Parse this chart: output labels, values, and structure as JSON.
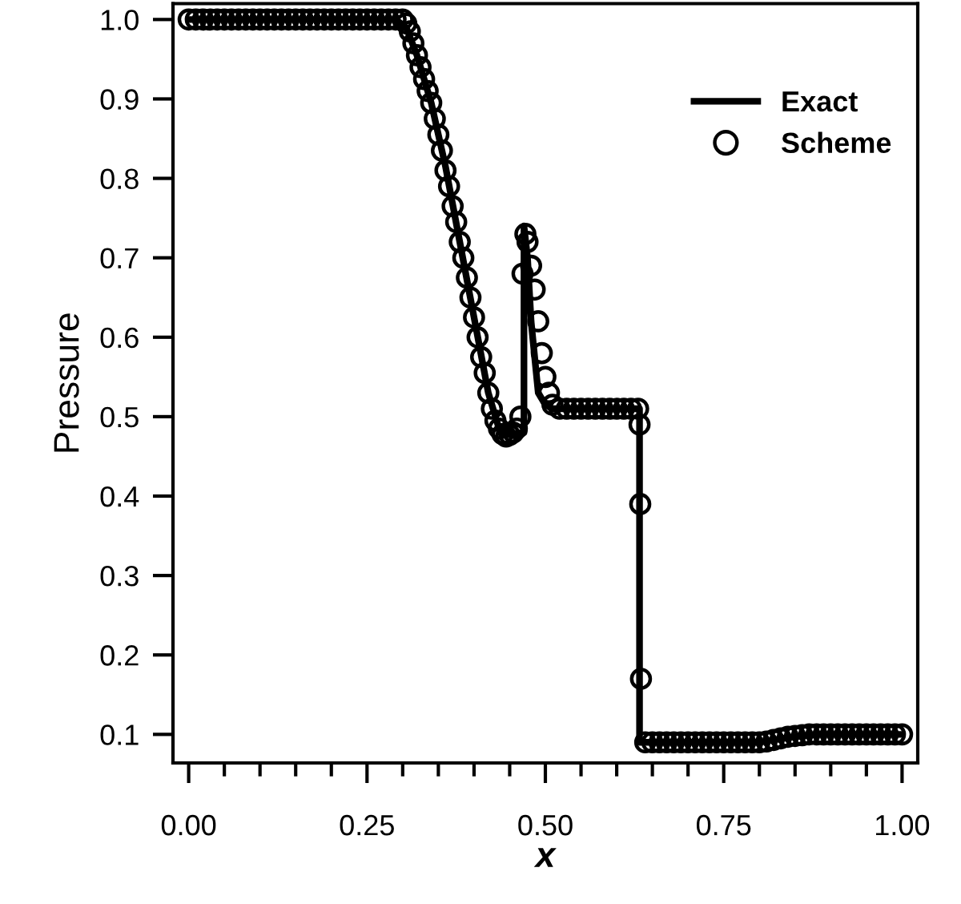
{
  "chart_data": {
    "type": "line",
    "xlabel": "x",
    "ylabel": "Pressure",
    "xlim": [
      -0.022,
      1.022
    ],
    "ylim": [
      0.064,
      1.02
    ],
    "xticks": [
      {
        "value": 0,
        "label": "0.00"
      },
      {
        "value": 0.05,
        "label": null
      },
      {
        "value": 0.1,
        "label": null
      },
      {
        "value": 0.15,
        "label": null
      },
      {
        "value": 0.2,
        "label": null
      },
      {
        "value": 0.25,
        "label": "0.25"
      },
      {
        "value": 0.3,
        "label": null
      },
      {
        "value": 0.35,
        "label": null
      },
      {
        "value": 0.4,
        "label": null
      },
      {
        "value": 0.45,
        "label": null
      },
      {
        "value": 0.5,
        "label": "0.50"
      },
      {
        "value": 0.55,
        "label": null
      },
      {
        "value": 0.6,
        "label": null
      },
      {
        "value": 0.65,
        "label": null
      },
      {
        "value": 0.7,
        "label": null
      },
      {
        "value": 0.75,
        "label": "0.75"
      },
      {
        "value": 0.8,
        "label": null
      },
      {
        "value": 0.85,
        "label": null
      },
      {
        "value": 0.9,
        "label": null
      },
      {
        "value": 0.95,
        "label": null
      },
      {
        "value": 1,
        "label": "1.00"
      }
    ],
    "yticks": [
      0.1,
      0.2,
      0.3,
      0.4,
      0.5,
      0.6,
      0.7,
      0.8,
      0.9,
      {
        "value": 1,
        "label": "1.0"
      }
    ],
    "grid": false,
    "legend": "top right",
    "series": [
      {
        "name": "Exact",
        "color": "#000000",
        "marker": "none",
        "line_style": "solid",
        "x": [
          0,
          0.29,
          0.305,
          0.32,
          0.34,
          0.36,
          0.38,
          0.4,
          0.42,
          0.435,
          0.445,
          0.47,
          0.47,
          0.475,
          0.48,
          0.49,
          0.5,
          0.51,
          0.632,
          0.632,
          0.8,
          0.84,
          0.88,
          1.0
        ],
        "values": [
          1.0,
          1.0,
          0.99,
          0.955,
          0.895,
          0.815,
          0.72,
          0.625,
          0.53,
          0.485,
          0.477,
          0.48,
          0.74,
          0.7,
          0.62,
          0.53,
          0.515,
          0.51,
          0.51,
          0.09,
          0.09,
          0.096,
          0.1,
          0.1
        ]
      },
      {
        "name": "Scheme",
        "type": "scatter",
        "color": "#000000",
        "marker": "circle",
        "x": [
          0,
          0.01,
          0.02,
          0.03,
          0.04,
          0.05,
          0.06,
          0.07,
          0.08,
          0.09,
          0.1,
          0.11,
          0.12,
          0.13,
          0.14,
          0.15,
          0.16,
          0.17,
          0.18,
          0.19,
          0.2,
          0.21,
          0.22,
          0.23,
          0.24,
          0.25,
          0.26,
          0.27,
          0.28,
          0.29,
          0.3,
          0.305,
          0.31,
          0.315,
          0.32,
          0.325,
          0.33,
          0.335,
          0.34,
          0.345,
          0.35,
          0.355,
          0.36,
          0.365,
          0.37,
          0.375,
          0.38,
          0.385,
          0.39,
          0.395,
          0.4,
          0.405,
          0.41,
          0.415,
          0.42,
          0.425,
          0.43,
          0.435,
          0.44,
          0.445,
          0.45,
          0.455,
          0.46,
          0.465,
          0.468,
          0.472,
          0.475,
          0.48,
          0.485,
          0.49,
          0.495,
          0.5,
          0.505,
          0.51,
          0.52,
          0.53,
          0.54,
          0.55,
          0.56,
          0.57,
          0.58,
          0.59,
          0.6,
          0.61,
          0.62,
          0.63,
          0.632,
          0.633,
          0.634,
          0.64,
          0.65,
          0.66,
          0.67,
          0.68,
          0.69,
          0.7,
          0.71,
          0.72,
          0.73,
          0.74,
          0.75,
          0.76,
          0.77,
          0.78,
          0.79,
          0.8,
          0.81,
          0.82,
          0.83,
          0.84,
          0.85,
          0.86,
          0.87,
          0.88,
          0.89,
          0.9,
          0.91,
          0.92,
          0.93,
          0.94,
          0.95,
          0.96,
          0.97,
          0.98,
          0.99,
          1.0
        ],
        "values": [
          1.0,
          1.0,
          1.0,
          1.0,
          1.0,
          1.0,
          1.0,
          1.0,
          1.0,
          1.0,
          1.0,
          1.0,
          1.0,
          1.0,
          1.0,
          1.0,
          1.0,
          1.0,
          1.0,
          1.0,
          1.0,
          1.0,
          1.0,
          1.0,
          1.0,
          1.0,
          1.0,
          1.0,
          1.0,
          1.0,
          1.0,
          0.995,
          0.985,
          0.97,
          0.955,
          0.94,
          0.925,
          0.91,
          0.895,
          0.875,
          0.855,
          0.835,
          0.81,
          0.79,
          0.765,
          0.745,
          0.72,
          0.7,
          0.675,
          0.65,
          0.625,
          0.6,
          0.575,
          0.555,
          0.53,
          0.51,
          0.495,
          0.485,
          0.478,
          0.475,
          0.477,
          0.48,
          0.485,
          0.5,
          0.68,
          0.73,
          0.72,
          0.69,
          0.66,
          0.62,
          0.58,
          0.55,
          0.53,
          0.515,
          0.51,
          0.51,
          0.51,
          0.51,
          0.51,
          0.51,
          0.51,
          0.51,
          0.51,
          0.51,
          0.51,
          0.51,
          0.49,
          0.39,
          0.17,
          0.09,
          0.09,
          0.09,
          0.09,
          0.09,
          0.09,
          0.09,
          0.09,
          0.09,
          0.09,
          0.09,
          0.09,
          0.09,
          0.09,
          0.09,
          0.09,
          0.09,
          0.091,
          0.093,
          0.095,
          0.097,
          0.098,
          0.099,
          0.1,
          0.1,
          0.1,
          0.1,
          0.1,
          0.1,
          0.1,
          0.1,
          0.1,
          0.1,
          0.1,
          0.1,
          0.1,
          0.1
        ]
      }
    ]
  }
}
